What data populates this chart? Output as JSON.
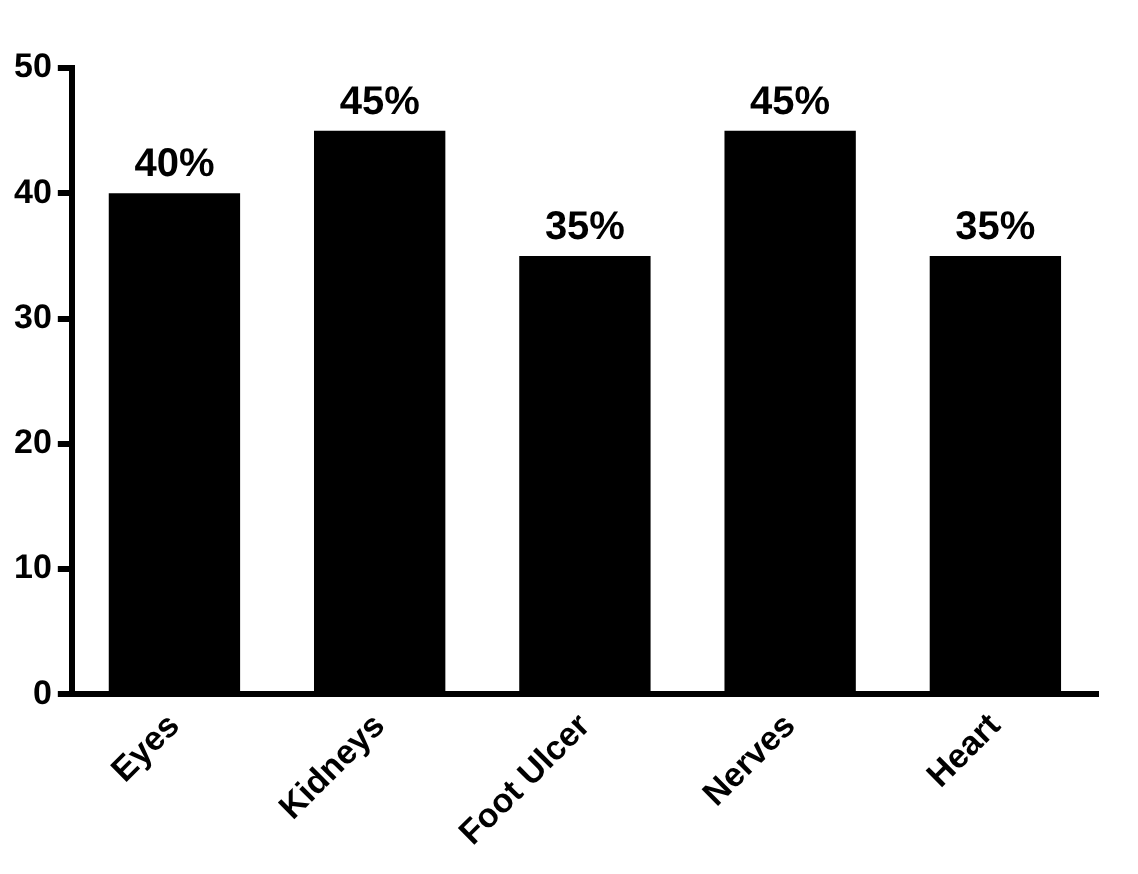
{
  "chart_data": {
    "type": "bar",
    "categories": [
      "Eyes",
      "Kidneys",
      "Foot Ulcer",
      "Nerves",
      "Heart"
    ],
    "values": [
      40,
      45,
      35,
      45,
      35
    ],
    "value_labels": [
      "40%",
      "45%",
      "35%",
      "45%",
      "35%"
    ],
    "color": "#000000",
    "ylim": [
      0,
      50
    ],
    "yticks": [
      0,
      10,
      20,
      30,
      40,
      50
    ],
    "grid": false,
    "legend": false
  }
}
